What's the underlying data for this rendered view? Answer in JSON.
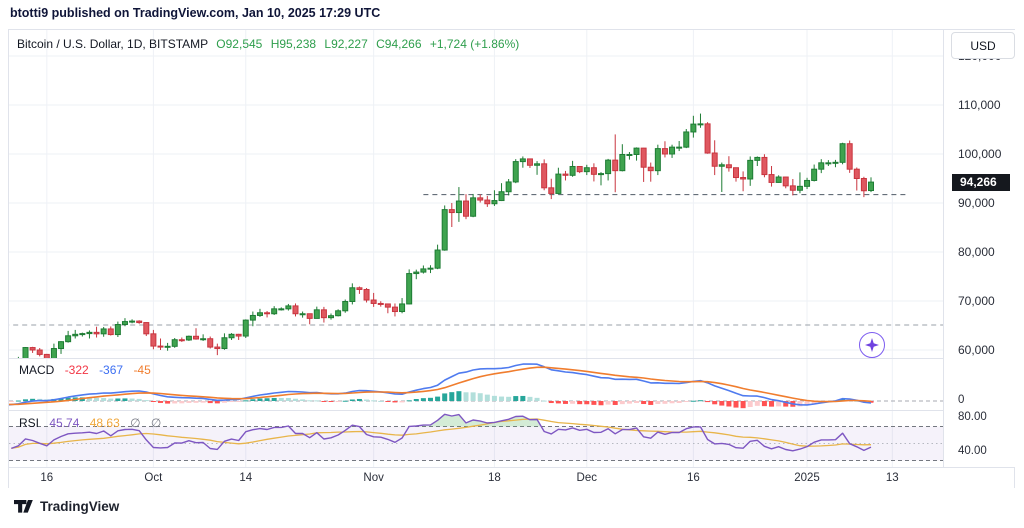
{
  "title_bar": {
    "text": "btotti9 published on TradingView.com, Jan 10, 2025 17:29 UTC"
  },
  "header": {
    "symbol_text": "Bitcoin / U.S. Dollar, 1D, BITSTAMP",
    "open": "O92,545",
    "high": "H95,238",
    "low": "L92,227",
    "close": "C94,266",
    "change": "+1,724 (+1.86%)"
  },
  "price_scale": {
    "currency_button": "USD",
    "last_price": {
      "label": "94,266",
      "value": 94266
    }
  },
  "panes": {
    "macd": {
      "legend_title": "MACD",
      "hist_value": "-322",
      "macd_value": "-367",
      "signal_value": "-45",
      "zero_label": "0"
    },
    "rsi": {
      "legend_title": "RSI",
      "value": "45.74",
      "ma_value": "48.63",
      "placeholder1": "∅",
      "placeholder2": "∅",
      "upper_label": "80.00",
      "lower_label": "40.00"
    }
  },
  "footer": {
    "brand": "TradingView"
  },
  "chart_data": {
    "type": "candlestick",
    "symbol": "Bitcoin / U.S. Dollar",
    "interval": "1D",
    "exchange": "BITSTAMP",
    "title": "",
    "warmup_count": 16,
    "candles": [
      [
        59050,
        60200,
        57850,
        59000
      ],
      [
        59000,
        61200,
        58750,
        59350
      ],
      [
        59350,
        59900,
        57700,
        59100
      ],
      [
        59100,
        59450,
        57750,
        58950
      ],
      [
        58950,
        59850,
        57150,
        57300
      ],
      [
        57300,
        59450,
        57100,
        59150
      ],
      [
        59150,
        59800,
        57400,
        57500
      ],
      [
        57500,
        58500,
        55650,
        58000
      ],
      [
        58000,
        58300,
        55950,
        56200
      ],
      [
        56200,
        57050,
        52550,
        53950
      ],
      [
        53950,
        54850,
        53750,
        54150
      ],
      [
        54150,
        55300,
        53650,
        54850
      ],
      [
        54850,
        58000,
        54600,
        57050
      ],
      [
        57050,
        58050,
        56400,
        57650
      ],
      [
        57650,
        57950,
        55550,
        57350
      ],
      [
        57350,
        58600,
        57150,
        58100
      ],
      [
        58100,
        60600,
        57600,
        60500
      ],
      [
        60500,
        60650,
        59400,
        60000
      ],
      [
        60000,
        60400,
        58700,
        59100
      ],
      [
        59100,
        59200,
        57500,
        58200
      ],
      [
        58200,
        61300,
        57600,
        60300
      ],
      [
        60300,
        61800,
        59200,
        61700
      ],
      [
        61700,
        63900,
        61500,
        62900
      ],
      [
        62900,
        64100,
        62350,
        63200
      ],
      [
        63200,
        63550,
        62750,
        63350
      ],
      [
        63350,
        64000,
        62350,
        63600
      ],
      [
        63600,
        64750,
        62550,
        63300
      ],
      [
        63300,
        64700,
        62700,
        64300
      ],
      [
        64300,
        64800,
        62950,
        63150
      ],
      [
        63150,
        65800,
        62650,
        65200
      ],
      [
        65200,
        66500,
        64850,
        65800
      ],
      [
        65800,
        66260,
        65450,
        65900
      ],
      [
        65900,
        66075,
        65350,
        65600
      ],
      [
        65600,
        65650,
        62850,
        63300
      ],
      [
        63300,
        64100,
        60150,
        60800
      ],
      [
        60800,
        62350,
        60000,
        60650
      ],
      [
        60650,
        61450,
        59850,
        60750
      ],
      [
        60750,
        62450,
        60450,
        62100
      ],
      [
        62100,
        62550,
        61650,
        62050
      ],
      [
        62050,
        62950,
        61850,
        62800
      ],
      [
        62800,
        64450,
        62100,
        62250
      ],
      [
        62250,
        63200,
        61850,
        62300
      ],
      [
        62300,
        62750,
        60300,
        60600
      ],
      [
        60600,
        61300,
        58950,
        60300
      ],
      [
        60300,
        63400,
        60050,
        62500
      ],
      [
        62500,
        63450,
        62050,
        63200
      ],
      [
        63200,
        63300,
        62050,
        62850
      ],
      [
        62850,
        66250,
        62450,
        66100
      ],
      [
        66100,
        67850,
        64850,
        67050
      ],
      [
        67050,
        68400,
        66750,
        67600
      ],
      [
        67600,
        67950,
        66650,
        67400
      ],
      [
        67400,
        68950,
        67150,
        68400
      ],
      [
        68400,
        68700,
        68050,
        68400
      ],
      [
        68400,
        69400,
        68050,
        69000
      ],
      [
        69000,
        69500,
        66850,
        67400
      ],
      [
        67400,
        67850,
        66600,
        67400
      ],
      [
        67400,
        67450,
        65250,
        66450
      ],
      [
        66450,
        68850,
        66450,
        68200
      ],
      [
        68200,
        68800,
        65600,
        66600
      ],
      [
        66600,
        67450,
        66200,
        67000
      ],
      [
        67000,
        68300,
        66850,
        68000
      ],
      [
        68000,
        70300,
        67600,
        69900
      ],
      [
        69900,
        73600,
        69300,
        72700
      ],
      [
        72700,
        72950,
        71450,
        72350
      ],
      [
        72350,
        72650,
        69700,
        70200
      ],
      [
        70200,
        71650,
        68800,
        69500
      ],
      [
        69500,
        69950,
        68850,
        69400
      ],
      [
        69400,
        69400,
        67500,
        68750
      ],
      [
        68750,
        69500,
        66850,
        67850
      ],
      [
        67850,
        70600,
        67500,
        69400
      ],
      [
        69400,
        76450,
        69300,
        75600
      ],
      [
        75600,
        76400,
        74450,
        75900
      ],
      [
        75900,
        77250,
        75600,
        76550
      ],
      [
        76550,
        77300,
        75700,
        76700
      ],
      [
        76700,
        81500,
        76500,
        80400
      ],
      [
        80400,
        89500,
        80250,
        88650
      ],
      [
        88650,
        90000,
        85100,
        88050
      ],
      [
        88050,
        93250,
        86150,
        90400
      ],
      [
        90400,
        91800,
        86700,
        87300
      ],
      [
        87300,
        91850,
        87100,
        91050
      ],
      [
        91050,
        91750,
        90100,
        90600
      ],
      [
        90600,
        91450,
        89200,
        89850
      ],
      [
        89850,
        92600,
        89400,
        90500
      ],
      [
        90500,
        94050,
        90400,
        92300
      ],
      [
        92300,
        94900,
        91550,
        94300
      ],
      [
        94300,
        98950,
        94050,
        98450
      ],
      [
        98450,
        99500,
        97200,
        99000
      ],
      [
        99000,
        99000,
        97150,
        97700
      ],
      [
        97700,
        98550,
        95750,
        98000
      ],
      [
        98000,
        98900,
        92600,
        93100
      ],
      [
        93100,
        94950,
        90800,
        91950
      ],
      [
        91950,
        97200,
        91750,
        95900
      ],
      [
        95900,
        96550,
        94600,
        95650
      ],
      [
        95650,
        98600,
        95350,
        97450
      ],
      [
        97450,
        97450,
        96100,
        96400
      ],
      [
        96400,
        97800,
        95700,
        97200
      ],
      [
        97200,
        98100,
        94400,
        95850
      ],
      [
        95850,
        96300,
        93600,
        96000
      ],
      [
        96000,
        99000,
        94600,
        98750
      ],
      [
        98750,
        104000,
        92200,
        96600
      ],
      [
        96600,
        102000,
        96450,
        99900
      ],
      [
        99900,
        100400,
        98850,
        99900
      ],
      [
        99900,
        101350,
        98650,
        101200
      ],
      [
        101200,
        101250,
        94300,
        97300
      ],
      [
        97300,
        98250,
        94350,
        96600
      ],
      [
        96600,
        101900,
        95700,
        101100
      ],
      [
        101100,
        102600,
        99300,
        100000
      ],
      [
        100000,
        101900,
        99200,
        101400
      ],
      [
        101400,
        102650,
        100600,
        101400
      ],
      [
        101400,
        105100,
        101200,
        104500
      ],
      [
        104500,
        107800,
        103350,
        106100
      ],
      [
        106100,
        108250,
        105350,
        106150
      ],
      [
        106150,
        106500,
        100050,
        100200
      ],
      [
        100200,
        102800,
        95700,
        97500
      ],
      [
        97500,
        98250,
        92250,
        97800
      ],
      [
        97800,
        99550,
        96400,
        97200
      ],
      [
        97200,
        97250,
        94350,
        95200
      ],
      [
        95200,
        96450,
        92400,
        94900
      ],
      [
        94900,
        99500,
        93500,
        98700
      ],
      [
        98700,
        99500,
        97550,
        99300
      ],
      [
        99300,
        99950,
        95250,
        95800
      ],
      [
        95800,
        97550,
        93350,
        94200
      ],
      [
        94200,
        95650,
        94150,
        95300
      ],
      [
        95300,
        95350,
        93000,
        93500
      ],
      [
        93500,
        94900,
        91550,
        92600
      ],
      [
        92600,
        96250,
        92000,
        93400
      ],
      [
        93400,
        95150,
        92850,
        94600
      ],
      [
        94600,
        97850,
        94400,
        96900
      ],
      [
        96900,
        98950,
        96100,
        98200
      ],
      [
        98200,
        98750,
        97550,
        98200
      ],
      [
        98200,
        98800,
        97300,
        98300
      ],
      [
        98300,
        102300,
        97900,
        102100
      ],
      [
        102100,
        102750,
        96150,
        96900
      ],
      [
        96900,
        97250,
        92550,
        95000
      ],
      [
        95000,
        95350,
        91200,
        92500
      ],
      [
        92545,
        95238,
        92227,
        94266
      ]
    ],
    "price_axis": {
      "ticks": [
        {
          "label": "120,000",
          "value": 120000
        },
        {
          "label": "110,000",
          "value": 110000
        },
        {
          "label": "100,000",
          "value": 100000
        },
        {
          "label": "90,000",
          "value": 90000
        },
        {
          "label": "80,000",
          "value": 80000
        },
        {
          "label": "70,000",
          "value": 70000
        },
        {
          "label": "60,000",
          "value": 60000
        }
      ]
    },
    "time_axis": {
      "ticks": [
        {
          "label": "16",
          "index": 3
        },
        {
          "label": "Oct",
          "index": 18
        },
        {
          "label": "14",
          "index": 31
        },
        {
          "label": "Nov",
          "index": 49
        },
        {
          "label": "18",
          "index": 66
        },
        {
          "label": "Dec",
          "index": 79
        },
        {
          "label": "16",
          "index": 94
        },
        {
          "label": "2025",
          "index": 110
        },
        {
          "label": "13",
          "index": 122
        }
      ]
    },
    "levels": [
      {
        "price": 65100,
        "start_index": -3,
        "end_index": 131,
        "color": "#9aa0a8"
      },
      {
        "price": 91700,
        "start_index": 56,
        "end_index": 124,
        "color": "#4f5966"
      }
    ],
    "indicators": {
      "macd": {
        "fast": 12,
        "slow": 26,
        "signal": 9
      },
      "rsi": {
        "length": 14,
        "ma_length": 14,
        "upper_band": 70,
        "middle_band": 50,
        "lower_band": 30
      }
    },
    "colors": {
      "up_body": "#3fa34f",
      "up_border": "#1e7c34",
      "down_body": "#df5860",
      "down_border": "#c9353f",
      "macd_line": "#4f7bef",
      "signal_line": "#f07d2e",
      "hist_grow_above": "#26A69A",
      "hist_fall_above": "#B2DFDB",
      "hist_fall_below": "#FF5252",
      "hist_grow_below": "#FCCBCD",
      "rsi_line": "#7e57c2",
      "rsi_ma_line": "#e8b54a",
      "rsi_band_fill": "#7e57c2",
      "overbought_fill": "#66bb6a",
      "grid": "#eef1f6",
      "zero_line": "#a7aab2",
      "legend_hist": "#f23645",
      "legend_macd": "#3c6ff2",
      "legend_signal": "#f07d2e",
      "legend_rsi": "#7e57c2",
      "legend_rsi_ma": "#f0a73c",
      "placeholder": "#787b86",
      "sparkle": "#6f42e0"
    }
  }
}
